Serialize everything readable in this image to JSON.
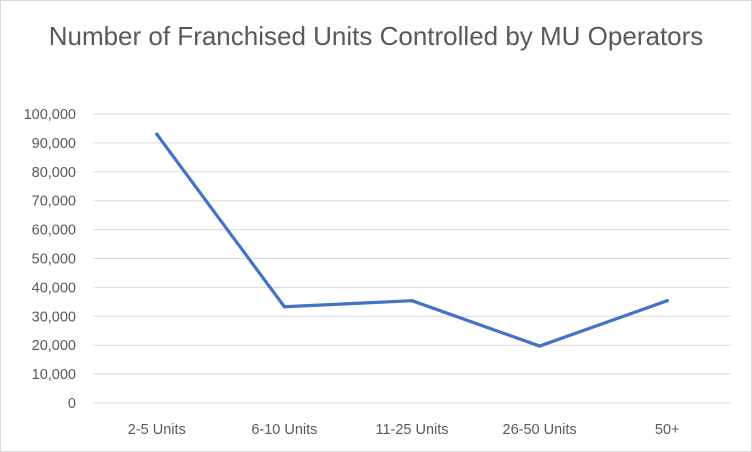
{
  "chart_data": {
    "type": "line",
    "title": "Number of Franchised Units Controlled by MU Operators",
    "xlabel": "",
    "ylabel": "",
    "categories": [
      "2-5 Units",
      "6-10 Units",
      "11-25 Units",
      "26-50 Units",
      "50+"
    ],
    "series": [
      {
        "values": [
          93000,
          33300,
          35400,
          19700,
          35400
        ]
      }
    ],
    "ylim": [
      0,
      100000
    ],
    "yticks": [
      "0",
      "10,000",
      "20,000",
      "30,000",
      "40,000",
      "50,000",
      "60,000",
      "70,000",
      "80,000",
      "90,000",
      "100,000"
    ],
    "grid": true,
    "legend": "none",
    "colors": {
      "line": "#4472c4",
      "grid": "#d9d9d9",
      "text": "#595959"
    }
  }
}
